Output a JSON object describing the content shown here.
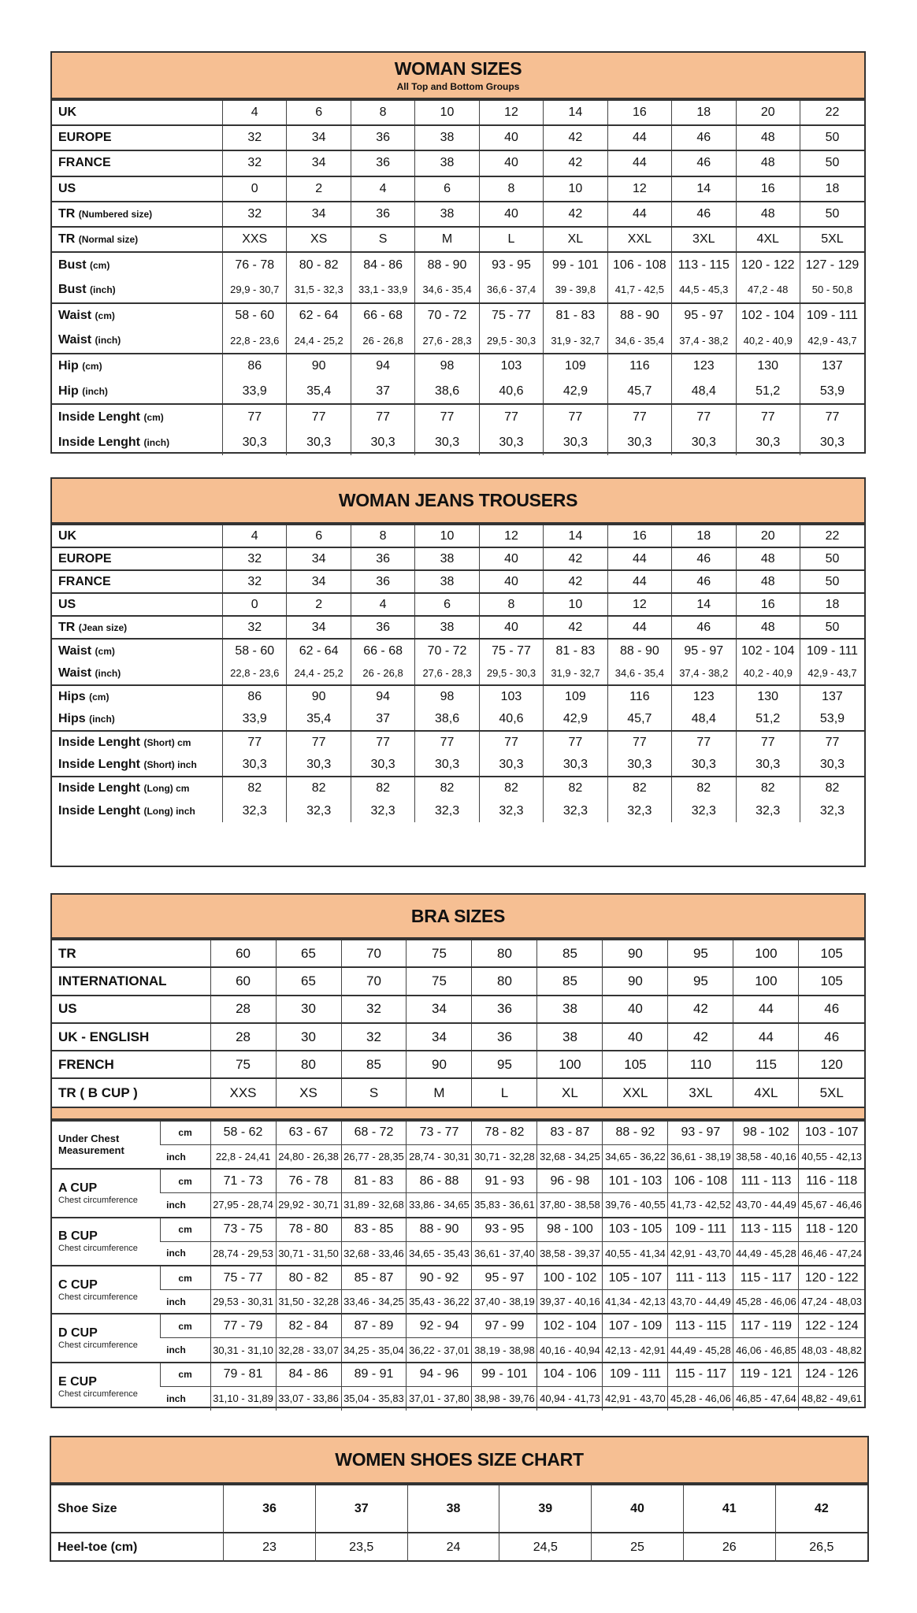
{
  "header_color": "#f6bf93",
  "woman_sizes": {
    "title": "WOMAN SIZES",
    "subtitle": "All Top and Bottom Groups",
    "groups": [
      [
        {
          "label": "UK",
          "note": "",
          "values": [
            "4",
            "6",
            "8",
            "10",
            "12",
            "14",
            "16",
            "18",
            "20",
            "22"
          ]
        }
      ],
      [
        {
          "label": "EUROPE",
          "note": "",
          "values": [
            "32",
            "34",
            "36",
            "38",
            "40",
            "42",
            "44",
            "46",
            "48",
            "50"
          ]
        }
      ],
      [
        {
          "label": "FRANCE",
          "note": "",
          "values": [
            "32",
            "34",
            "36",
            "38",
            "40",
            "42",
            "44",
            "46",
            "48",
            "50"
          ]
        }
      ],
      [
        {
          "label": "US",
          "note": "",
          "values": [
            "0",
            "2",
            "4",
            "6",
            "8",
            "10",
            "12",
            "14",
            "16",
            "18"
          ]
        }
      ],
      [
        {
          "label": "TR",
          "note": "(Numbered size)",
          "values": [
            "32",
            "34",
            "36",
            "38",
            "40",
            "42",
            "44",
            "46",
            "48",
            "50"
          ]
        }
      ],
      [
        {
          "label": "TR",
          "note": "(Normal size)",
          "values": [
            "XXS",
            "XS",
            "S",
            "M",
            "L",
            "XL",
            "XXL",
            "3XL",
            "4XL",
            "5XL"
          ]
        }
      ],
      [
        {
          "label": "Bust",
          "note": "(cm)",
          "values": [
            "76 - 78",
            "80 - 82",
            "84 - 86",
            "88 - 90",
            "93 - 95",
            "99 - 101",
            "106 - 108",
            "113 - 115",
            "120 - 122",
            "127 - 129"
          ]
        },
        {
          "label": "Bust",
          "note": "(inch)",
          "small": true,
          "values": [
            "29,9 - 30,7",
            "31,5 - 32,3",
            "33,1 - 33,9",
            "34,6 - 35,4",
            "36,6 - 37,4",
            "39 - 39,8",
            "41,7 - 42,5",
            "44,5 - 45,3",
            "47,2 - 48",
            "50 - 50,8"
          ]
        }
      ],
      [
        {
          "label": "Waist",
          "note": "(cm)",
          "values": [
            "58 - 60",
            "62 - 64",
            "66 - 68",
            "70 - 72",
            "75 - 77",
            "81 - 83",
            "88 - 90",
            "95 - 97",
            "102 - 104",
            "109 - 111"
          ]
        },
        {
          "label": "Waist",
          "note": "(inch)",
          "small": true,
          "values": [
            "22,8 - 23,6",
            "24,4 - 25,2",
            "26 - 26,8",
            "27,6 - 28,3",
            "29,5 - 30,3",
            "31,9 - 32,7",
            "34,6 - 35,4",
            "37,4 - 38,2",
            "40,2 - 40,9",
            "42,9 - 43,7"
          ]
        }
      ],
      [
        {
          "label": "Hip",
          "note": "(cm)",
          "values": [
            "86",
            "90",
            "94",
            "98",
            "103",
            "109",
            "116",
            "123",
            "130",
            "137"
          ]
        },
        {
          "label": "Hip",
          "note": "(inch)",
          "values": [
            "33,9",
            "35,4",
            "37",
            "38,6",
            "40,6",
            "42,9",
            "45,7",
            "48,4",
            "51,2",
            "53,9"
          ]
        }
      ],
      [
        {
          "label": "Inside Lenght",
          "note": "(cm)",
          "values": [
            "77",
            "77",
            "77",
            "77",
            "77",
            "77",
            "77",
            "77",
            "77",
            "77"
          ]
        },
        {
          "label": "Inside Lenght",
          "note": "(inch)",
          "values": [
            "30,3",
            "30,3",
            "30,3",
            "30,3",
            "30,3",
            "30,3",
            "30,3",
            "30,3",
            "30,3",
            "30,3"
          ]
        }
      ]
    ]
  },
  "jeans": {
    "title": "WOMAN JEANS TROUSERS",
    "groups": [
      [
        {
          "label": "UK",
          "note": "",
          "values": [
            "4",
            "6",
            "8",
            "10",
            "12",
            "14",
            "16",
            "18",
            "20",
            "22"
          ]
        }
      ],
      [
        {
          "label": "EUROPE",
          "note": "",
          "values": [
            "32",
            "34",
            "36",
            "38",
            "40",
            "42",
            "44",
            "46",
            "48",
            "50"
          ]
        }
      ],
      [
        {
          "label": "FRANCE",
          "note": "",
          "values": [
            "32",
            "34",
            "36",
            "38",
            "40",
            "42",
            "44",
            "46",
            "48",
            "50"
          ]
        }
      ],
      [
        {
          "label": "US",
          "note": "",
          "values": [
            "0",
            "2",
            "4",
            "6",
            "8",
            "10",
            "12",
            "14",
            "16",
            "18"
          ]
        }
      ],
      [
        {
          "label": "TR",
          "note": "(Jean size)",
          "values": [
            "32",
            "34",
            "36",
            "38",
            "40",
            "42",
            "44",
            "46",
            "48",
            "50"
          ]
        }
      ],
      [
        {
          "label": "Waist",
          "note": "(cm)",
          "values": [
            "58 - 60",
            "62 - 64",
            "66 - 68",
            "70 - 72",
            "75 - 77",
            "81 - 83",
            "88 - 90",
            "95 - 97",
            "102 - 104",
            "109 - 111"
          ]
        },
        {
          "label": "Waist",
          "note": "(inch)",
          "small": true,
          "values": [
            "22,8 - 23,6",
            "24,4 - 25,2",
            "26 - 26,8",
            "27,6 - 28,3",
            "29,5 - 30,3",
            "31,9 - 32,7",
            "34,6 - 35,4",
            "37,4 - 38,2",
            "40,2 - 40,9",
            "42,9 - 43,7"
          ]
        }
      ],
      [
        {
          "label": "Hips",
          "note": "(cm)",
          "values": [
            "86",
            "90",
            "94",
            "98",
            "103",
            "109",
            "116",
            "123",
            "130",
            "137"
          ]
        },
        {
          "label": "Hips",
          "note": "(inch)",
          "values": [
            "33,9",
            "35,4",
            "37",
            "38,6",
            "40,6",
            "42,9",
            "45,7",
            "48,4",
            "51,2",
            "53,9"
          ]
        }
      ],
      [
        {
          "label": "Inside Lenght",
          "note": "(Short) cm",
          "values": [
            "77",
            "77",
            "77",
            "77",
            "77",
            "77",
            "77",
            "77",
            "77",
            "77"
          ]
        },
        {
          "label": "Inside Lenght",
          "note": "(Short) inch",
          "values": [
            "30,3",
            "30,3",
            "30,3",
            "30,3",
            "30,3",
            "30,3",
            "30,3",
            "30,3",
            "30,3",
            "30,3"
          ]
        }
      ],
      [
        {
          "label": "Inside Lenght",
          "note": "(Long) cm",
          "values": [
            "82",
            "82",
            "82",
            "82",
            "82",
            "82",
            "82",
            "82",
            "82",
            "82"
          ]
        },
        {
          "label": "Inside Lenght",
          "note": "(Long) inch",
          "values": [
            "32,3",
            "32,3",
            "32,3",
            "32,3",
            "32,3",
            "32,3",
            "32,3",
            "32,3",
            "32,3",
            "32,3"
          ]
        }
      ]
    ]
  },
  "bra": {
    "title": "BRA SIZES",
    "rows": [
      {
        "label": "TR",
        "values": [
          "60",
          "65",
          "70",
          "75",
          "80",
          "85",
          "90",
          "95",
          "100",
          "105"
        ]
      },
      {
        "label": "INTERNATIONAL",
        "values": [
          "60",
          "65",
          "70",
          "75",
          "80",
          "85",
          "90",
          "95",
          "100",
          "105"
        ]
      },
      {
        "label": "US",
        "values": [
          "28",
          "30",
          "32",
          "34",
          "36",
          "38",
          "40",
          "42",
          "44",
          "46"
        ]
      },
      {
        "label": "UK - ENGLISH",
        "values": [
          "28",
          "30",
          "32",
          "34",
          "36",
          "38",
          "40",
          "42",
          "44",
          "46"
        ]
      },
      {
        "label": "FRENCH",
        "values": [
          "75",
          "80",
          "85",
          "90",
          "95",
          "100",
          "105",
          "110",
          "115",
          "120"
        ]
      },
      {
        "label": "TR ( B CUP )",
        "values": [
          "XXS",
          "XS",
          "S",
          "M",
          "L",
          "XL",
          "XXL",
          "3XL",
          "4XL",
          "5XL"
        ]
      }
    ],
    "unit_cm": "cm",
    "unit_inch": "inch",
    "cups": [
      {
        "label": "Under Chest Measurement",
        "note": "",
        "cm": [
          "58 - 62",
          "63 - 67",
          "68 - 72",
          "73 - 77",
          "78 - 82",
          "83 - 87",
          "88 - 92",
          "93 - 97",
          "98 - 102",
          "103 - 107"
        ],
        "inch": [
          "22,8 - 24,41",
          "24,80 - 26,38",
          "26,77 - 28,35",
          "28,74 - 30,31",
          "30,71 - 32,28",
          "32,68 - 34,25",
          "34,65 - 36,22",
          "36,61 - 38,19",
          "38,58 - 40,16",
          "40,55 - 42,13"
        ]
      },
      {
        "label": "A CUP",
        "note": "Chest circumference",
        "cm": [
          "71 - 73",
          "76 - 78",
          "81 - 83",
          "86 - 88",
          "91 - 93",
          "96 - 98",
          "101 - 103",
          "106 - 108",
          "111 - 113",
          "116 - 118"
        ],
        "inch": [
          "27,95 - 28,74",
          "29,92 - 30,71",
          "31,89 - 32,68",
          "33,86 - 34,65",
          "35,83 - 36,61",
          "37,80 - 38,58",
          "39,76 - 40,55",
          "41,73 - 42,52",
          "43,70 - 44,49",
          "45,67 - 46,46"
        ]
      },
      {
        "label": "B CUP",
        "note": "Chest circumference",
        "cm": [
          "73 - 75",
          "78 - 80",
          "83 - 85",
          "88 - 90",
          "93 - 95",
          "98 - 100",
          "103 - 105",
          "109 - 111",
          "113 - 115",
          "118 - 120"
        ],
        "inch": [
          "28,74 - 29,53",
          "30,71 - 31,50",
          "32,68 - 33,46",
          "34,65 - 35,43",
          "36,61 - 37,40",
          "38,58 - 39,37",
          "40,55 - 41,34",
          "42,91 - 43,70",
          "44,49 - 45,28",
          "46,46 - 47,24"
        ]
      },
      {
        "label": "C CUP",
        "note": "Chest circumference",
        "cm": [
          "75 - 77",
          "80 - 82",
          "85 - 87",
          "90 - 92",
          "95 - 97",
          "100 - 102",
          "105 - 107",
          "111 - 113",
          "115 - 117",
          "120 - 122"
        ],
        "inch": [
          "29,53 - 30,31",
          "31,50 - 32,28",
          "33,46 - 34,25",
          "35,43 - 36,22",
          "37,40 - 38,19",
          "39,37 - 40,16",
          "41,34 - 42,13",
          "43,70 - 44,49",
          "45,28 - 46,06",
          "47,24 - 48,03"
        ]
      },
      {
        "label": "D CUP",
        "note": "Chest circumference",
        "cm": [
          "77 - 79",
          "82 - 84",
          "87 - 89",
          "92 - 94",
          "97 - 99",
          "102 - 104",
          "107 - 109",
          "113 - 115",
          "117 - 119",
          "122 - 124"
        ],
        "inch": [
          "30,31 - 31,10",
          "32,28 - 33,07",
          "34,25 - 35,04",
          "36,22 - 37,01",
          "38,19 - 38,98",
          "40,16 - 40,94",
          "42,13 - 42,91",
          "44,49 - 45,28",
          "46,06 - 46,85",
          "48,03 - 48,82"
        ]
      },
      {
        "label": "E CUP",
        "note": "Chest circumference",
        "cm": [
          "79 - 81",
          "84 - 86",
          "89 - 91",
          "94 - 96",
          "99 - 101",
          "104 - 106",
          "109 - 111",
          "115 - 117",
          "119 - 121",
          "124 - 126"
        ],
        "inch": [
          "31,10 - 31,89",
          "33,07 - 33,86",
          "35,04 - 35,83",
          "37,01 - 37,80",
          "38,98 - 39,76",
          "40,94 - 41,73",
          "42,91 - 43,70",
          "45,28 - 46,06",
          "46,85 - 47,64",
          "48,82 - 49,61"
        ]
      }
    ]
  },
  "shoes": {
    "title": "WOMEN SHOES SIZE CHART",
    "rows": [
      {
        "label": "Shoe Size",
        "values": [
          "36",
          "37",
          "38",
          "39",
          "40",
          "41",
          "42"
        ]
      },
      {
        "label": "Heel-toe (cm)",
        "values": [
          "23",
          "23,5",
          "24",
          "24,5",
          "25",
          "26",
          "26,5"
        ]
      }
    ]
  }
}
